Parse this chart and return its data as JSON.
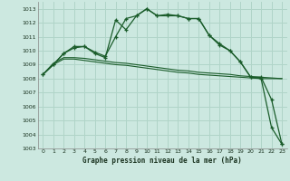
{
  "title": "Graphe pression niveau de la mer (hPa)",
  "bg_color": "#cce8e0",
  "grid_color": "#b0d4c8",
  "line_color": "#1a5c2a",
  "xlim": [
    -0.5,
    23.5
  ],
  "ylim": [
    1003,
    1013.5
  ],
  "yticks": [
    1003,
    1004,
    1005,
    1006,
    1007,
    1008,
    1009,
    1010,
    1011,
    1012,
    1013
  ],
  "xticks": [
    0,
    1,
    2,
    3,
    4,
    5,
    6,
    7,
    8,
    9,
    10,
    11,
    12,
    13,
    14,
    15,
    16,
    17,
    18,
    19,
    20,
    21,
    22,
    23
  ],
  "series_main": [
    1008.3,
    1009.0,
    1009.8,
    1010.2,
    1010.3,
    1009.8,
    1009.5,
    1012.2,
    1011.5,
    1012.5,
    1013.0,
    1012.5,
    1012.6,
    1012.5,
    1012.3,
    1012.3,
    1011.1,
    1010.4,
    1010.0,
    1009.2,
    1008.1,
    1008.0,
    1004.5,
    1003.3
  ],
  "series_second": [
    1008.3,
    1009.0,
    1009.8,
    1010.3,
    1010.3,
    1009.9,
    1009.6,
    1011.0,
    1012.3,
    1012.5,
    1013.0,
    1012.5,
    1012.5,
    1012.5,
    1012.3,
    1012.3,
    1011.1,
    1010.5,
    1010.0,
    1009.2,
    1008.1,
    1008.1,
    1006.5,
    1003.3
  ],
  "series_flat1": [
    1008.3,
    1009.0,
    1009.4,
    1009.4,
    1009.3,
    1009.2,
    1009.1,
    1009.0,
    1008.95,
    1008.85,
    1008.75,
    1008.65,
    1008.55,
    1008.45,
    1008.4,
    1008.3,
    1008.25,
    1008.2,
    1008.15,
    1008.1,
    1008.05,
    1008.0,
    1008.0,
    1008.0
  ],
  "series_flat2": [
    1008.3,
    1009.1,
    1009.5,
    1009.5,
    1009.45,
    1009.35,
    1009.25,
    1009.15,
    1009.1,
    1009.0,
    1008.9,
    1008.8,
    1008.7,
    1008.6,
    1008.55,
    1008.45,
    1008.4,
    1008.35,
    1008.3,
    1008.2,
    1008.15,
    1008.1,
    1008.05,
    1008.0
  ]
}
